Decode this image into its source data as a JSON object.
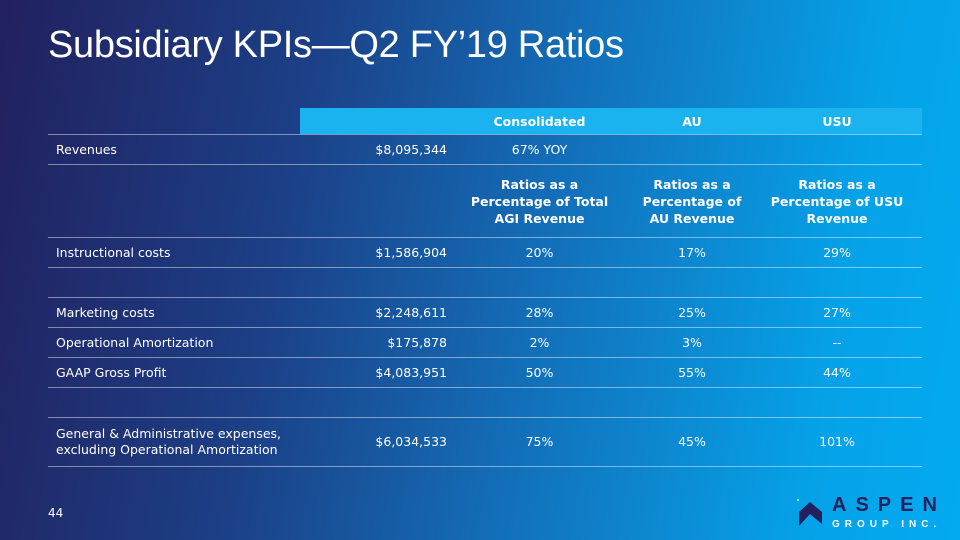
{
  "title": "Subsidiary KPIs—Q2 FY’19 Ratios",
  "header": {
    "consolidated": "Consolidated",
    "au": "AU",
    "usu": "USU"
  },
  "revenues": {
    "label": "Revenues",
    "amount": "$8,095,344",
    "consolidated": "67% YOY"
  },
  "ratio_headers": {
    "consolidated": "Ratios as a Percentage of Total AGI Revenue",
    "au": "Ratios as a Percentage of AU Revenue",
    "usu": "Ratios as a Percentage of USU Revenue"
  },
  "rows": [
    {
      "label": "Instructional costs",
      "amount": "$1,586,904",
      "consolidated": "20%",
      "au": "17%",
      "usu": "29%"
    },
    {
      "label": "Marketing costs",
      "amount": "$2,248,611",
      "consolidated": "28%",
      "au": "25%",
      "usu": "27%"
    },
    {
      "label": "Operational Amortization",
      "amount": "$175,878",
      "consolidated": "2%",
      "au": "3%",
      "usu": "--"
    },
    {
      "label": "GAAP Gross Profit",
      "amount": "$4,083,951",
      "consolidated": "50%",
      "au": "55%",
      "usu": "44%"
    },
    {
      "label": "General & Administrative expenses, excluding Operational Amortization",
      "amount": "$6,034,533",
      "consolidated": "75%",
      "au": "45%",
      "usu": "101%"
    }
  ],
  "page_number": "44",
  "logo": {
    "name": "ASPEN",
    "sub": "GROUP INC."
  }
}
